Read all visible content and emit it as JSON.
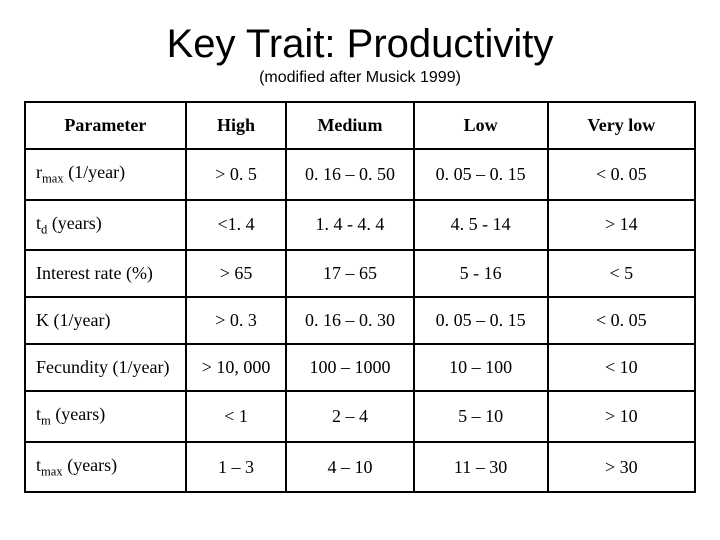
{
  "title": "Key Trait: Productivity",
  "subtitle": "(modified after Musick 1999)",
  "table": {
    "columns": [
      "Parameter",
      "High",
      "Medium",
      "Low",
      "Very low"
    ],
    "rows": [
      {
        "param_html": "r<sub>max</sub> (1/year)",
        "high": "> 0. 5",
        "medium": "0. 16 – 0. 50",
        "low": "0. 05 – 0. 15",
        "verylow": "< 0. 05"
      },
      {
        "param_html": "t<sub>d</sub> (years)",
        "high": "<1. 4",
        "medium": "1. 4 - 4. 4",
        "low": "4. 5 - 14",
        "verylow": "> 14"
      },
      {
        "param_html": "Interest rate (%)",
        "high": "> 65",
        "medium": "17 – 65",
        "low": "5 - 16",
        "verylow": "< 5"
      },
      {
        "param_html": "K (1/year)",
        "high": "> 0. 3",
        "medium": "0. 16 – 0. 30",
        "low": "0. 05 – 0. 15",
        "verylow": "< 0. 05"
      },
      {
        "param_html": "Fecundity (1/year)",
        "high": "> 10, 000",
        "medium": "100 – 1000",
        "low": "10 – 100",
        "verylow": "< 10"
      },
      {
        "param_html": "t<sub>m</sub> (years)",
        "high": "< 1",
        "medium": "2 – 4",
        "low": "5 – 10",
        "verylow": "> 10"
      },
      {
        "param_html": "t<sub>max</sub> (years)",
        "high": "1 – 3",
        "medium": "4 – 10",
        "low": "11 – 30",
        "verylow": "> 30"
      }
    ]
  }
}
